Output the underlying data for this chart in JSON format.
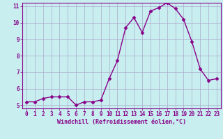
{
  "x": [
    0,
    1,
    2,
    3,
    4,
    5,
    6,
    7,
    8,
    9,
    10,
    11,
    12,
    13,
    14,
    15,
    16,
    17,
    18,
    19,
    20,
    21,
    22,
    23
  ],
  "y": [
    5.2,
    5.2,
    5.4,
    5.5,
    5.5,
    5.5,
    5.0,
    5.2,
    5.2,
    5.3,
    6.6,
    7.7,
    9.7,
    10.3,
    9.4,
    10.7,
    10.9,
    11.2,
    10.85,
    10.2,
    8.85,
    7.2,
    6.5,
    6.6
  ],
  "xlabel": "Windchill (Refroidissement éolien,°C)",
  "ylim": [
    5,
    11
  ],
  "xlim": [
    -0.5,
    23.5
  ],
  "yticks": [
    5,
    6,
    7,
    8,
    9,
    10,
    11
  ],
  "xticks": [
    0,
    1,
    2,
    3,
    4,
    5,
    6,
    7,
    8,
    9,
    10,
    11,
    12,
    13,
    14,
    15,
    16,
    17,
    18,
    19,
    20,
    21,
    22,
    23
  ],
  "line_color": "#880088",
  "marker_color": "#880088",
  "bg_color": "#C8EEF0",
  "grid_color": "#aaaacc",
  "xlabel_color": "#880088",
  "xtick_color": "#880088",
  "ytick_color": "#880088",
  "marker": "D",
  "markersize": 2.5,
  "linewidth": 1.0,
  "tick_fontsize": 5.5,
  "xlabel_fontsize": 6.0
}
